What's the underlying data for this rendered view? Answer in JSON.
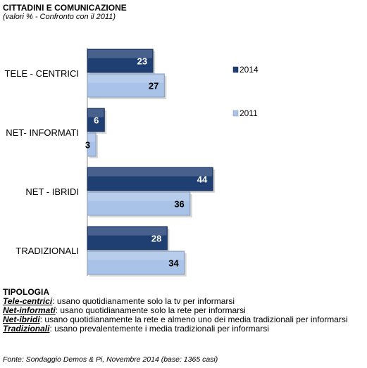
{
  "header": {
    "title": "CITTADINI E COMUNICAZIONE",
    "subtitle": "(valori % - Confronto con il 2011)"
  },
  "chart_data": {
    "type": "bar",
    "orientation": "horizontal",
    "categories": [
      "TELE - CENTRICI",
      "NET- INFORMATI",
      "NET - IBRIDI",
      "TRADIZIONALI"
    ],
    "series": [
      {
        "name": "2014",
        "values": [
          23,
          6,
          44,
          28
        ],
        "color": "#1f3f73"
      },
      {
        "name": "2011",
        "values": [
          27,
          3,
          36,
          34
        ],
        "color": "#a9c3e8"
      }
    ],
    "xlim": [
      0,
      100
    ],
    "grid": false,
    "legend_position": "right"
  },
  "notes": {
    "heading": "TIPOLOGIA",
    "items": [
      {
        "term": "Tele-centrici",
        "desc": ":  usano quotidianamente solo la tv per informarsi"
      },
      {
        "term": "Net-informati",
        "desc": ": usano quotidianamente solo la rete per informarsi"
      },
      {
        "term": "Net-ibridi",
        "desc": ": usano quotidianamente la rete e almeno uno dei media tradizionali per informarsi"
      },
      {
        "term": "Tradizionali",
        "desc": ":  usano prevalentemente i media tradizionali per informarsi"
      }
    ]
  },
  "source": "Fonte: Sondaggio Demos & Pi, Novembre 2014 (base: 1365 casi)"
}
